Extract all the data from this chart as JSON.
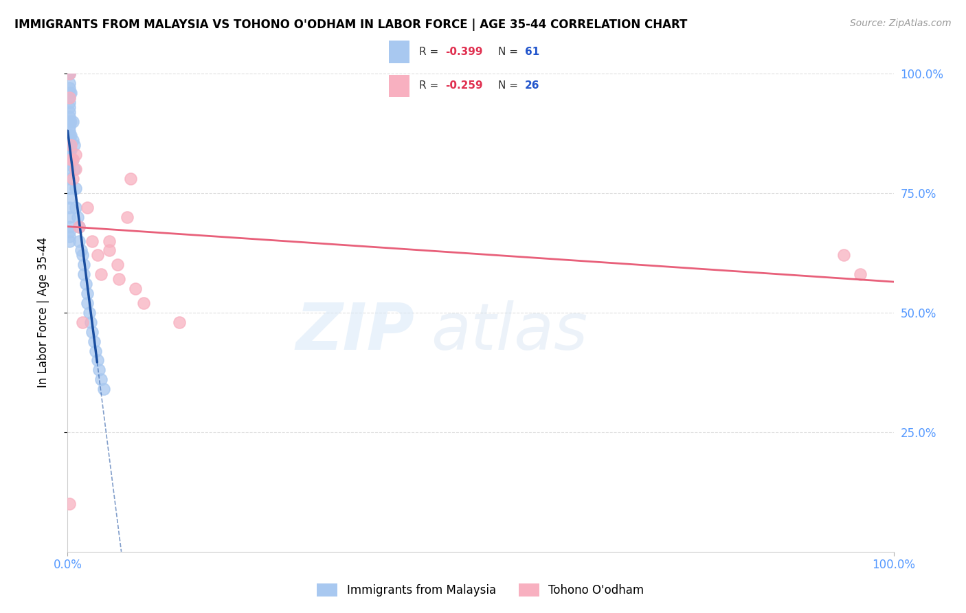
{
  "title": "IMMIGRANTS FROM MALAYSIA VS TOHONO O'ODHAM IN LABOR FORCE | AGE 35-44 CORRELATION CHART",
  "source": "Source: ZipAtlas.com",
  "ylabel": "In Labor Force | Age 35-44",
  "xlim": [
    0,
    1.0
  ],
  "ylim": [
    0,
    1.0
  ],
  "blue_R": -0.399,
  "blue_N": 61,
  "pink_R": -0.259,
  "pink_N": 26,
  "blue_scatter_color": "#A8C8F0",
  "pink_scatter_color": "#F8B0C0",
  "blue_line_color": "#1A4EA0",
  "pink_line_color": "#E8607A",
  "axis_label_color": "#5599FF",
  "grid_color": "#DDDDDD",
  "blue_scatter_x": [
    0.002,
    0.002,
    0.002,
    0.002,
    0.002,
    0.002,
    0.002,
    0.002,
    0.002,
    0.002,
    0.002,
    0.002,
    0.002,
    0.002,
    0.002,
    0.002,
    0.002,
    0.002,
    0.002,
    0.002,
    0.002,
    0.002,
    0.002,
    0.002,
    0.002,
    0.002,
    0.002,
    0.002,
    0.002,
    0.002,
    0.004,
    0.004,
    0.004,
    0.004,
    0.004,
    0.006,
    0.006,
    0.006,
    0.008,
    0.008,
    0.01,
    0.01,
    0.012,
    0.014,
    0.014,
    0.016,
    0.018,
    0.02,
    0.02,
    0.022,
    0.024,
    0.024,
    0.026,
    0.028,
    0.03,
    0.032,
    0.034,
    0.036,
    0.038,
    0.04,
    0.044
  ],
  "blue_scatter_y": [
    1.0,
    1.0,
    0.98,
    0.97,
    0.96,
    0.95,
    0.94,
    0.93,
    0.92,
    0.91,
    0.9,
    0.89,
    0.88,
    0.87,
    0.86,
    0.85,
    0.84,
    0.83,
    0.82,
    0.81,
    0.8,
    0.78,
    0.76,
    0.74,
    0.72,
    0.7,
    0.68,
    0.67,
    0.66,
    0.65,
    0.96,
    0.9,
    0.87,
    0.84,
    0.82,
    0.9,
    0.86,
    0.82,
    0.85,
    0.8,
    0.76,
    0.72,
    0.7,
    0.68,
    0.65,
    0.63,
    0.62,
    0.6,
    0.58,
    0.56,
    0.54,
    0.52,
    0.5,
    0.48,
    0.46,
    0.44,
    0.42,
    0.4,
    0.38,
    0.36,
    0.34
  ],
  "pink_scatter_x": [
    0.002,
    0.002,
    0.002,
    0.004,
    0.004,
    0.006,
    0.006,
    0.01,
    0.01,
    0.014,
    0.018,
    0.024,
    0.03,
    0.036,
    0.04,
    0.05,
    0.05,
    0.06,
    0.062,
    0.072,
    0.076,
    0.082,
    0.092,
    0.135,
    0.94,
    0.96
  ],
  "pink_scatter_y": [
    1.0,
    0.95,
    0.1,
    0.85,
    0.82,
    0.82,
    0.78,
    0.83,
    0.8,
    0.68,
    0.48,
    0.72,
    0.65,
    0.62,
    0.58,
    0.65,
    0.63,
    0.6,
    0.57,
    0.7,
    0.78,
    0.55,
    0.52,
    0.48,
    0.62,
    0.58
  ]
}
